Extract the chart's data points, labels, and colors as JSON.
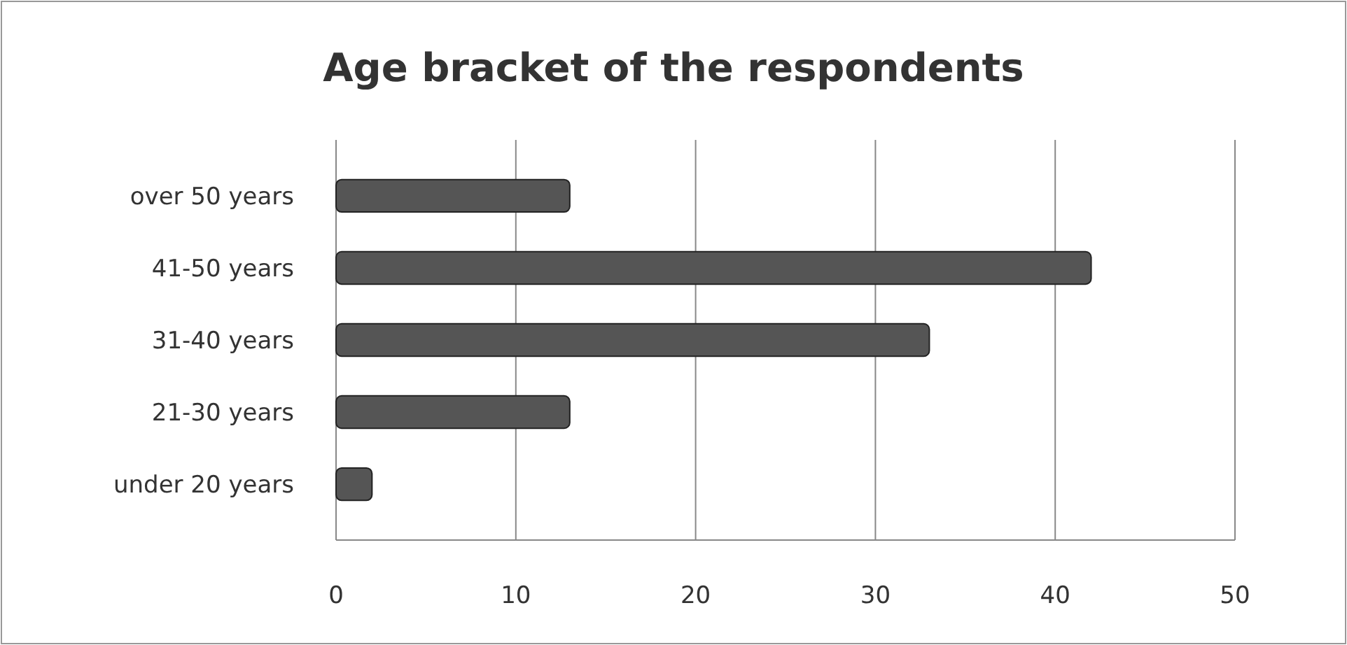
{
  "chart_data": {
    "type": "bar",
    "orientation": "horizontal",
    "title": "Age bracket of the respondents",
    "categories": [
      "over 50 years",
      "41-50 years",
      "31-40 years",
      "21-30 years",
      "under 20 years"
    ],
    "values": [
      13,
      42,
      33,
      13,
      2
    ],
    "color": "#555555",
    "xlim": [
      0,
      50
    ],
    "xticks": [
      0,
      10,
      20,
      30,
      40,
      50
    ],
    "grid": "x"
  }
}
